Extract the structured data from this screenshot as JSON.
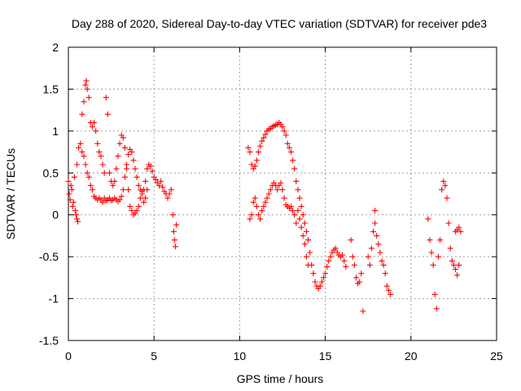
{
  "chart_data": {
    "type": "scatter",
    "title": "Day 288 of 2020, Sidereal Day-to-day VTEC variation (SDTVAR) for receiver pde3",
    "xlabel": "GPS time / hours",
    "ylabel": "SDTVAR / TECUs",
    "xlim": [
      0,
      25
    ],
    "ylim": [
      -1.5,
      2
    ],
    "x_ticks": [
      0,
      5,
      10,
      15,
      20,
      25
    ],
    "x_tick_labels": [
      "0",
      "5",
      "10",
      "15",
      "20",
      "25"
    ],
    "y_ticks": [
      -1.5,
      -1,
      -0.5,
      0,
      0.5,
      1,
      1.5,
      2
    ],
    "y_tick_labels": [
      "-1.5",
      "-1",
      "-0.5",
      "0",
      "0.5",
      "1",
      "1.5",
      "2"
    ],
    "grid": true,
    "marker": "plus",
    "color": "#ff0000",
    "series": [
      {
        "name": "SDTVAR",
        "points": [
          [
            0.0,
            0.4
          ],
          [
            0.05,
            0.25
          ],
          [
            0.1,
            0.18
          ],
          [
            0.15,
            0.35
          ],
          [
            0.2,
            0.3
          ],
          [
            0.25,
            0.1
          ],
          [
            0.3,
            0.15
          ],
          [
            0.35,
            0.45
          ],
          [
            0.4,
            0.05
          ],
          [
            0.45,
            0.0
          ],
          [
            0.5,
            0.6
          ],
          [
            0.5,
            -0.05
          ],
          [
            0.55,
            -0.08
          ],
          [
            0.6,
            0.8
          ],
          [
            0.7,
            0.85
          ],
          [
            0.8,
            0.75
          ],
          [
            0.9,
            0.7
          ],
          [
            1.0,
            0.6
          ],
          [
            1.1,
            0.5
          ],
          [
            1.2,
            0.45
          ],
          [
            1.3,
            0.35
          ],
          [
            1.4,
            0.3
          ],
          [
            1.5,
            0.22
          ],
          [
            1.6,
            0.2
          ],
          [
            1.7,
            0.18
          ],
          [
            1.8,
            0.2
          ],
          [
            1.9,
            0.18
          ],
          [
            2.0,
            0.15
          ],
          [
            2.1,
            0.2
          ],
          [
            2.2,
            0.17
          ],
          [
            2.3,
            0.18
          ],
          [
            2.4,
            0.2
          ],
          [
            2.5,
            0.17
          ],
          [
            2.6,
            0.18
          ],
          [
            2.7,
            0.2
          ],
          [
            2.8,
            0.18
          ],
          [
            2.9,
            0.16
          ],
          [
            3.0,
            0.18
          ],
          [
            3.1,
            0.22
          ],
          [
            3.2,
            0.3
          ],
          [
            3.3,
            0.45
          ],
          [
            3.4,
            0.6
          ],
          [
            3.5,
            0.72
          ],
          [
            3.6,
            0.78
          ],
          [
            3.7,
            0.75
          ],
          [
            3.8,
            0.65
          ],
          [
            3.9,
            0.55
          ],
          [
            4.0,
            0.45
          ],
          [
            4.1,
            0.35
          ],
          [
            4.2,
            0.3
          ],
          [
            4.3,
            0.28
          ],
          [
            4.4,
            0.3
          ],
          [
            4.5,
            0.4
          ],
          [
            4.6,
            0.55
          ],
          [
            4.7,
            0.6
          ],
          [
            4.8,
            0.58
          ],
          [
            4.9,
            0.52
          ],
          [
            5.0,
            0.45
          ],
          [
            5.1,
            0.42
          ],
          [
            5.2,
            0.38
          ],
          [
            5.3,
            0.35
          ],
          [
            5.4,
            0.4
          ],
          [
            5.5,
            0.33
          ],
          [
            5.6,
            0.28
          ],
          [
            5.7,
            0.25
          ],
          [
            5.8,
            0.2
          ],
          [
            5.9,
            0.25
          ],
          [
            6.0,
            0.3
          ],
          [
            6.1,
            0.0
          ],
          [
            6.15,
            -0.2
          ],
          [
            6.2,
            -0.3
          ],
          [
            6.25,
            -0.38
          ],
          [
            6.3,
            -0.12
          ],
          [
            0.8,
            1.2
          ],
          [
            0.9,
            1.35
          ],
          [
            1.0,
            1.55
          ],
          [
            1.05,
            1.6
          ],
          [
            1.1,
            1.5
          ],
          [
            1.2,
            1.4
          ],
          [
            1.3,
            1.1
          ],
          [
            1.4,
            1.05
          ],
          [
            1.5,
            1.1
          ],
          [
            1.6,
            1.0
          ],
          [
            1.7,
            0.85
          ],
          [
            1.8,
            0.75
          ],
          [
            1.9,
            0.7
          ],
          [
            2.0,
            0.6
          ],
          [
            2.1,
            0.5
          ],
          [
            2.2,
            1.4
          ],
          [
            2.3,
            1.2
          ],
          [
            2.4,
            0.5
          ],
          [
            2.5,
            0.4
          ],
          [
            2.6,
            0.35
          ],
          [
            2.7,
            0.4
          ],
          [
            2.8,
            0.55
          ],
          [
            2.9,
            0.7
          ],
          [
            3.0,
            0.85
          ],
          [
            3.1,
            0.95
          ],
          [
            3.2,
            0.92
          ],
          [
            3.3,
            0.8
          ],
          [
            3.4,
            0.55
          ],
          [
            3.5,
            0.3
          ],
          [
            3.6,
            0.1
          ],
          [
            3.7,
            0.05
          ],
          [
            3.8,
            0.0
          ],
          [
            3.9,
            0.02
          ],
          [
            4.0,
            0.05
          ],
          [
            4.1,
            0.1
          ],
          [
            4.2,
            0.2
          ],
          [
            4.3,
            0.25
          ],
          [
            4.4,
            0.15
          ],
          [
            4.5,
            0.2
          ],
          [
            4.6,
            0.3
          ],
          [
            10.5,
            0.8
          ],
          [
            10.6,
            0.75
          ],
          [
            10.7,
            0.6
          ],
          [
            10.8,
            0.55
          ],
          [
            10.9,
            0.58
          ],
          [
            11.0,
            0.65
          ],
          [
            11.1,
            0.75
          ],
          [
            11.2,
            0.82
          ],
          [
            11.3,
            0.88
          ],
          [
            11.4,
            0.92
          ],
          [
            11.5,
            0.96
          ],
          [
            11.6,
            1.0
          ],
          [
            11.7,
            1.02
          ],
          [
            11.8,
            1.03
          ],
          [
            11.9,
            1.05
          ],
          [
            12.0,
            1.06
          ],
          [
            12.1,
            1.07
          ],
          [
            12.2,
            1.08
          ],
          [
            12.3,
            1.1
          ],
          [
            12.4,
            1.08
          ],
          [
            12.5,
            1.05
          ],
          [
            12.6,
            1.0
          ],
          [
            12.7,
            0.95
          ],
          [
            12.8,
            0.85
          ],
          [
            12.9,
            0.8
          ],
          [
            13.0,
            0.75
          ],
          [
            13.1,
            0.65
          ],
          [
            13.2,
            0.55
          ],
          [
            13.3,
            0.4
          ],
          [
            13.4,
            0.3
          ],
          [
            13.5,
            0.2
          ],
          [
            13.6,
            0.1
          ],
          [
            13.7,
            0.0
          ],
          [
            13.8,
            -0.1
          ],
          [
            13.9,
            -0.2
          ],
          [
            14.0,
            -0.3
          ],
          [
            14.1,
            -0.45
          ],
          [
            14.2,
            -0.6
          ],
          [
            10.6,
            -0.05
          ],
          [
            10.7,
            0.0
          ],
          [
            10.8,
            0.15
          ],
          [
            10.9,
            0.2
          ],
          [
            11.0,
            0.1
          ],
          [
            11.1,
            0.0
          ],
          [
            11.2,
            -0.05
          ],
          [
            11.3,
            0.05
          ],
          [
            11.4,
            0.1
          ],
          [
            11.5,
            0.15
          ],
          [
            11.6,
            0.2
          ],
          [
            11.7,
            0.25
          ],
          [
            11.8,
            0.3
          ],
          [
            11.9,
            0.35
          ],
          [
            12.0,
            0.38
          ],
          [
            12.1,
            0.35
          ],
          [
            12.2,
            0.3
          ],
          [
            12.3,
            0.35
          ],
          [
            12.4,
            0.38
          ],
          [
            12.5,
            0.3
          ],
          [
            12.6,
            0.2
          ],
          [
            12.7,
            0.12
          ],
          [
            12.8,
            0.1
          ],
          [
            12.9,
            0.08
          ],
          [
            13.0,
            0.1
          ],
          [
            13.1,
            0.05
          ],
          [
            13.2,
            0.0
          ],
          [
            13.3,
            -0.1
          ],
          [
            13.4,
            0.05
          ],
          [
            13.5,
            -0.05
          ],
          [
            13.6,
            -0.15
          ],
          [
            13.7,
            -0.25
          ],
          [
            13.8,
            -0.35
          ],
          [
            13.9,
            -0.5
          ],
          [
            14.0,
            -0.6
          ],
          [
            14.3,
            -0.7
          ],
          [
            14.4,
            -0.8
          ],
          [
            14.5,
            -0.85
          ],
          [
            14.6,
            -0.88
          ],
          [
            14.7,
            -0.85
          ],
          [
            14.8,
            -0.8
          ],
          [
            14.9,
            -0.75
          ],
          [
            15.0,
            -0.7
          ],
          [
            15.1,
            -0.62
          ],
          [
            15.2,
            -0.55
          ],
          [
            15.3,
            -0.5
          ],
          [
            15.4,
            -0.45
          ],
          [
            15.5,
            -0.42
          ],
          [
            15.6,
            -0.4
          ],
          [
            15.7,
            -0.45
          ],
          [
            15.8,
            -0.48
          ],
          [
            15.9,
            -0.5
          ],
          [
            16.0,
            -0.48
          ],
          [
            16.1,
            -0.55
          ],
          [
            16.2,
            -0.62
          ],
          [
            16.5,
            -0.3
          ],
          [
            16.6,
            -0.5
          ],
          [
            16.7,
            -0.6
          ],
          [
            16.8,
            -0.75
          ],
          [
            16.9,
            -0.82
          ],
          [
            17.0,
            -0.8
          ],
          [
            17.1,
            -0.7
          ],
          [
            17.2,
            -1.15
          ],
          [
            17.5,
            -0.5
          ],
          [
            17.6,
            -0.6
          ],
          [
            17.7,
            -0.4
          ],
          [
            17.8,
            -0.2
          ],
          [
            17.9,
            -0.1
          ],
          [
            17.9,
            0.05
          ],
          [
            18.0,
            -0.25
          ],
          [
            18.1,
            -0.35
          ],
          [
            18.2,
            -0.45
          ],
          [
            18.3,
            -0.55
          ],
          [
            18.4,
            -0.6
          ],
          [
            18.5,
            -0.7
          ],
          [
            18.6,
            -0.85
          ],
          [
            18.7,
            -0.9
          ],
          [
            18.8,
            -0.95
          ],
          [
            21.0,
            -0.05
          ],
          [
            21.1,
            -0.3
          ],
          [
            21.2,
            -0.45
          ],
          [
            21.3,
            -0.6
          ],
          [
            21.4,
            -0.95
          ],
          [
            21.5,
            -1.12
          ],
          [
            21.6,
            -0.5
          ],
          [
            21.7,
            -0.3
          ],
          [
            21.8,
            0.3
          ],
          [
            21.9,
            0.4
          ],
          [
            22.0,
            0.35
          ],
          [
            22.1,
            0.2
          ],
          [
            22.2,
            -0.1
          ],
          [
            22.3,
            -0.4
          ],
          [
            22.4,
            -0.55
          ],
          [
            22.5,
            -0.6
          ],
          [
            22.6,
            -0.65
          ],
          [
            22.7,
            -0.72
          ],
          [
            22.8,
            -0.6
          ],
          [
            22.9,
            -0.2
          ],
          [
            22.6,
            -0.2
          ],
          [
            22.7,
            -0.18
          ],
          [
            22.8,
            -0.15
          ]
        ]
      }
    ]
  }
}
